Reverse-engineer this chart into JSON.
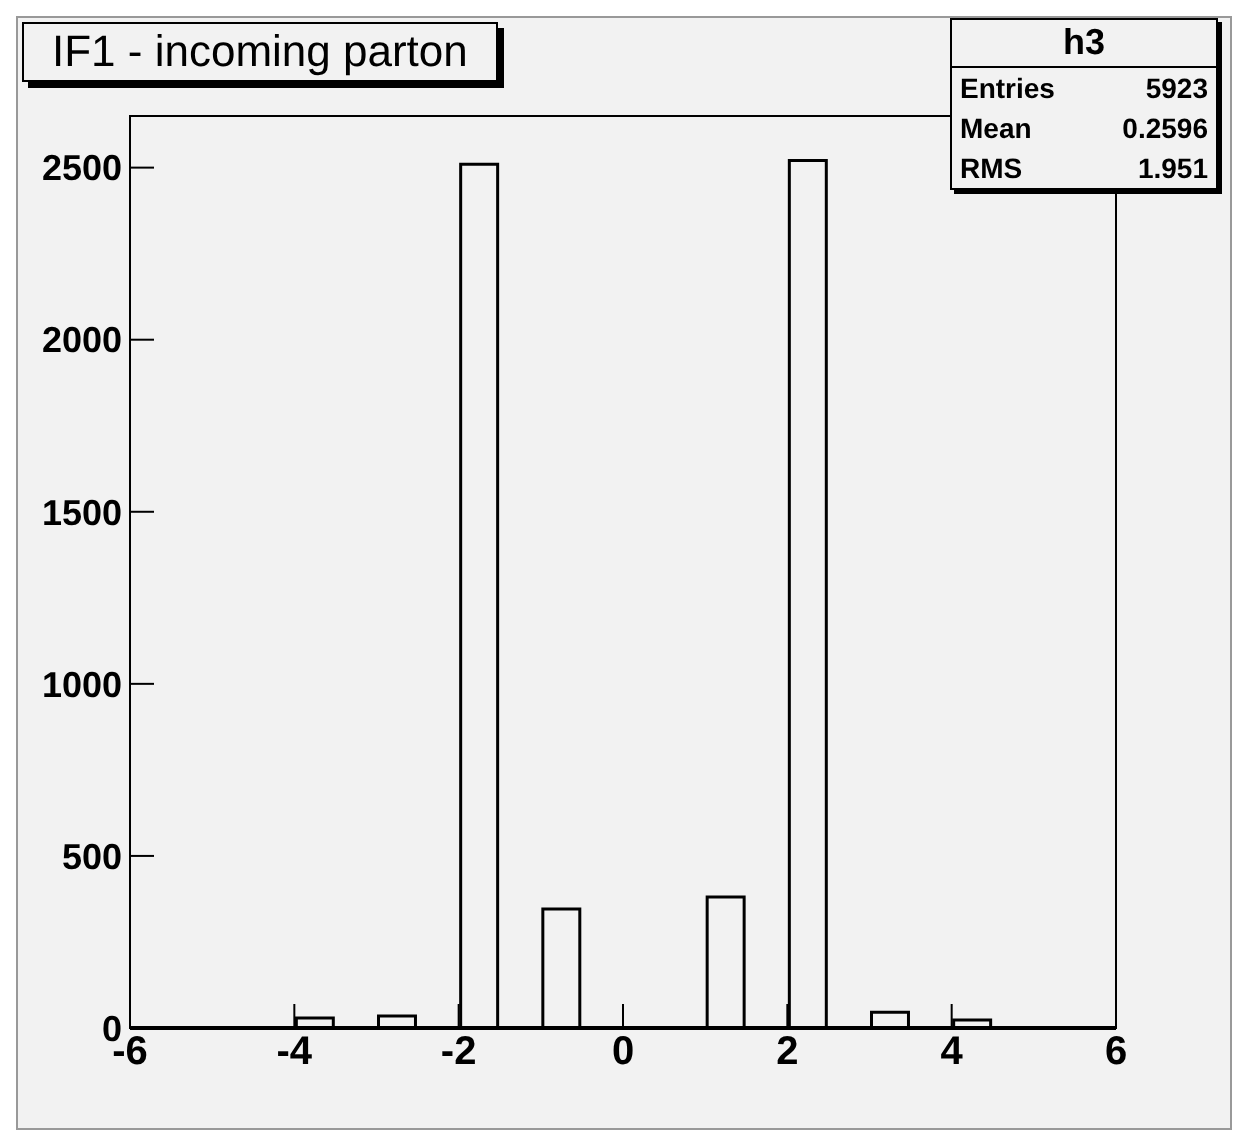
{
  "chart_data": {
    "type": "histogram",
    "title": "IF1 - incoming parton",
    "bins": [
      -6,
      -5.5,
      -5,
      -4.5,
      -4,
      -3.5,
      -3,
      -2.5,
      -2,
      -1.5,
      -1,
      -0.5,
      0,
      0.5,
      1,
      1.5,
      2,
      2.5,
      3,
      3.5,
      4,
      4.5,
      5,
      5.5,
      6
    ],
    "values": [
      0,
      0,
      0,
      0,
      29,
      0,
      35,
      0,
      2510,
      0,
      346,
      0,
      0,
      0,
      381,
      0,
      2521,
      0,
      46,
      0,
      23,
      0,
      0,
      0
    ],
    "color": "#000000",
    "xlim": [
      -6,
      6
    ],
    "xticks": [
      -6,
      -4,
      -2,
      0,
      2,
      4,
      6
    ],
    "ylim": [
      0,
      2650
    ],
    "yticks": [
      0,
      500,
      1000,
      1500,
      2000,
      2500
    ],
    "annotations": [
      "h3",
      "Entries 5923",
      "Mean 0.2596",
      "RMS 1.951"
    ]
  }
}
